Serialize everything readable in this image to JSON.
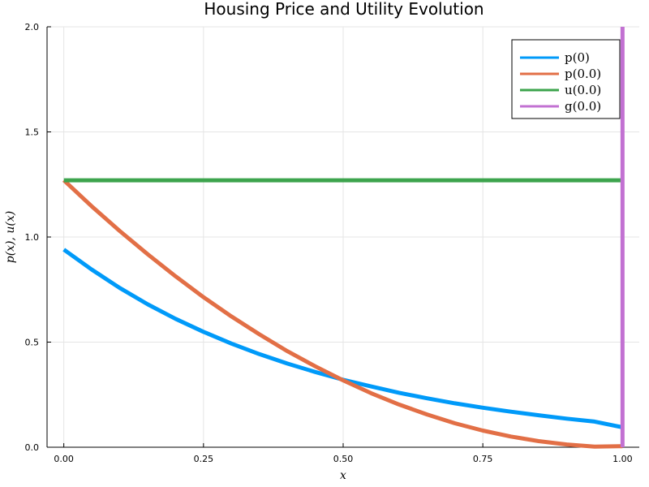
{
  "chart_data": {
    "type": "line",
    "title": "Housing Price and Utility Evolution",
    "xlabel": "x",
    "ylabel": "p(x), u(x)",
    "xlim": [
      -0.03,
      1.03
    ],
    "ylim": [
      0,
      2
    ],
    "xticks": [
      0.0,
      0.25,
      0.5,
      0.75,
      1.0
    ],
    "xtick_labels": [
      "0.00",
      "0.25",
      "0.50",
      "0.75",
      "1.00"
    ],
    "yticks": [
      0.0,
      0.5,
      1.0,
      1.5,
      2.0
    ],
    "ytick_labels": [
      "0.0",
      "0.5",
      "1.0",
      "1.5",
      "2.0"
    ],
    "grid": true,
    "legend_position": "top-right",
    "series": [
      {
        "name": "p(0)",
        "color": "#009af9",
        "x": [
          0.0,
          0.05,
          0.1,
          0.15,
          0.2,
          0.25,
          0.3,
          0.35,
          0.4,
          0.45,
          0.5,
          0.55,
          0.6,
          0.65,
          0.7,
          0.75,
          0.8,
          0.85,
          0.9,
          0.95,
          1.0
        ],
        "y": [
          0.94,
          0.845,
          0.758,
          0.68,
          0.611,
          0.549,
          0.493,
          0.443,
          0.398,
          0.358,
          0.321,
          0.289,
          0.259,
          0.233,
          0.209,
          0.188,
          0.169,
          0.152,
          0.136,
          0.122,
          0.095
        ]
      },
      {
        "name": "p(0.0)",
        "color": "#e26f46",
        "x": [
          0.0,
          0.05,
          0.1,
          0.15,
          0.2,
          0.25,
          0.3,
          0.35,
          0.4,
          0.45,
          0.5,
          0.55,
          0.6,
          0.65,
          0.7,
          0.75,
          0.8,
          0.85,
          0.9,
          0.95,
          1.0
        ],
        "y": [
          1.27,
          1.146,
          1.029,
          0.918,
          0.813,
          0.714,
          0.622,
          0.537,
          0.457,
          0.385,
          0.318,
          0.257,
          0.203,
          0.156,
          0.114,
          0.079,
          0.051,
          0.029,
          0.013,
          0.003,
          0.005
        ]
      },
      {
        "name": "u(0.0)",
        "color": "#3da44d",
        "x": [
          0.0,
          1.0
        ],
        "y": [
          1.27,
          1.27
        ]
      },
      {
        "name": "g(0.0)",
        "color": "#c271d2",
        "vertical_x": 1.0
      }
    ]
  }
}
